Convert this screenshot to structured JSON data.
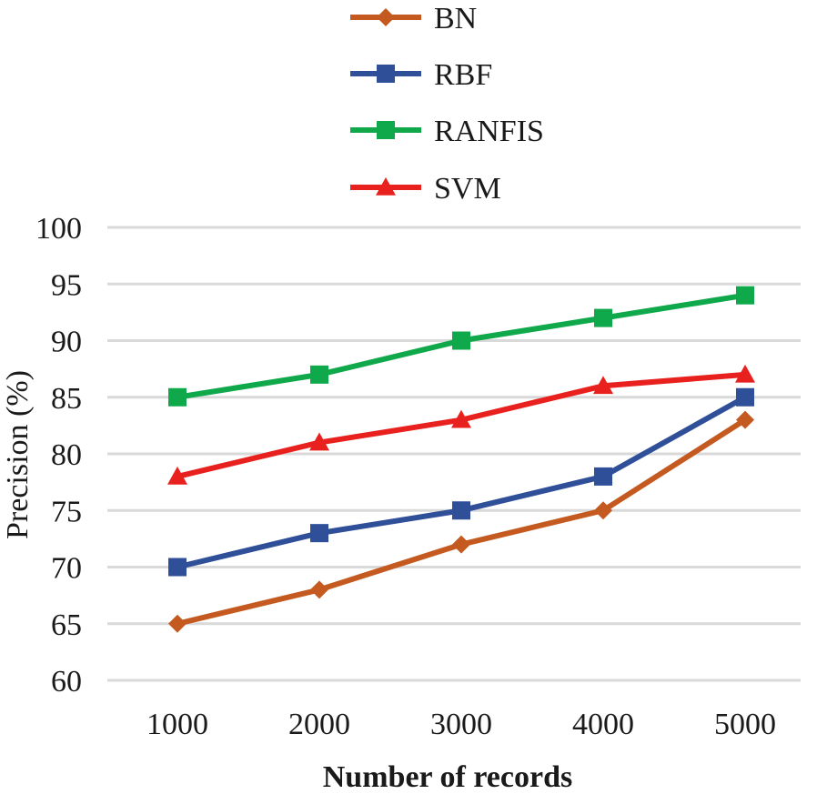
{
  "chart_data": {
    "type": "line",
    "title": "",
    "xlabel": "Number of records",
    "ylabel": "Precision (%)",
    "categories": [
      "1000",
      "2000",
      "3000",
      "4000",
      "5000"
    ],
    "ylim": [
      60,
      100
    ],
    "yticks": [
      "60",
      "65",
      "70",
      "75",
      "80",
      "85",
      "90",
      "95",
      "100"
    ],
    "grid": true,
    "legend_position": "top",
    "series": [
      {
        "name": "BN",
        "values": [
          65,
          68,
          72,
          75,
          83
        ],
        "color": "#c55a21",
        "marker": "diamond"
      },
      {
        "name": "RBF",
        "values": [
          70,
          73,
          75,
          78,
          85
        ],
        "color": "#2f4f99",
        "marker": "square"
      },
      {
        "name": "RANFIS",
        "values": [
          85,
          87,
          90,
          92,
          94
        ],
        "color": "#0fa84a",
        "marker": "square"
      },
      {
        "name": "SVM",
        "values": [
          78,
          81,
          83,
          86,
          87
        ],
        "color": "#e8211e",
        "marker": "triangle"
      }
    ]
  }
}
